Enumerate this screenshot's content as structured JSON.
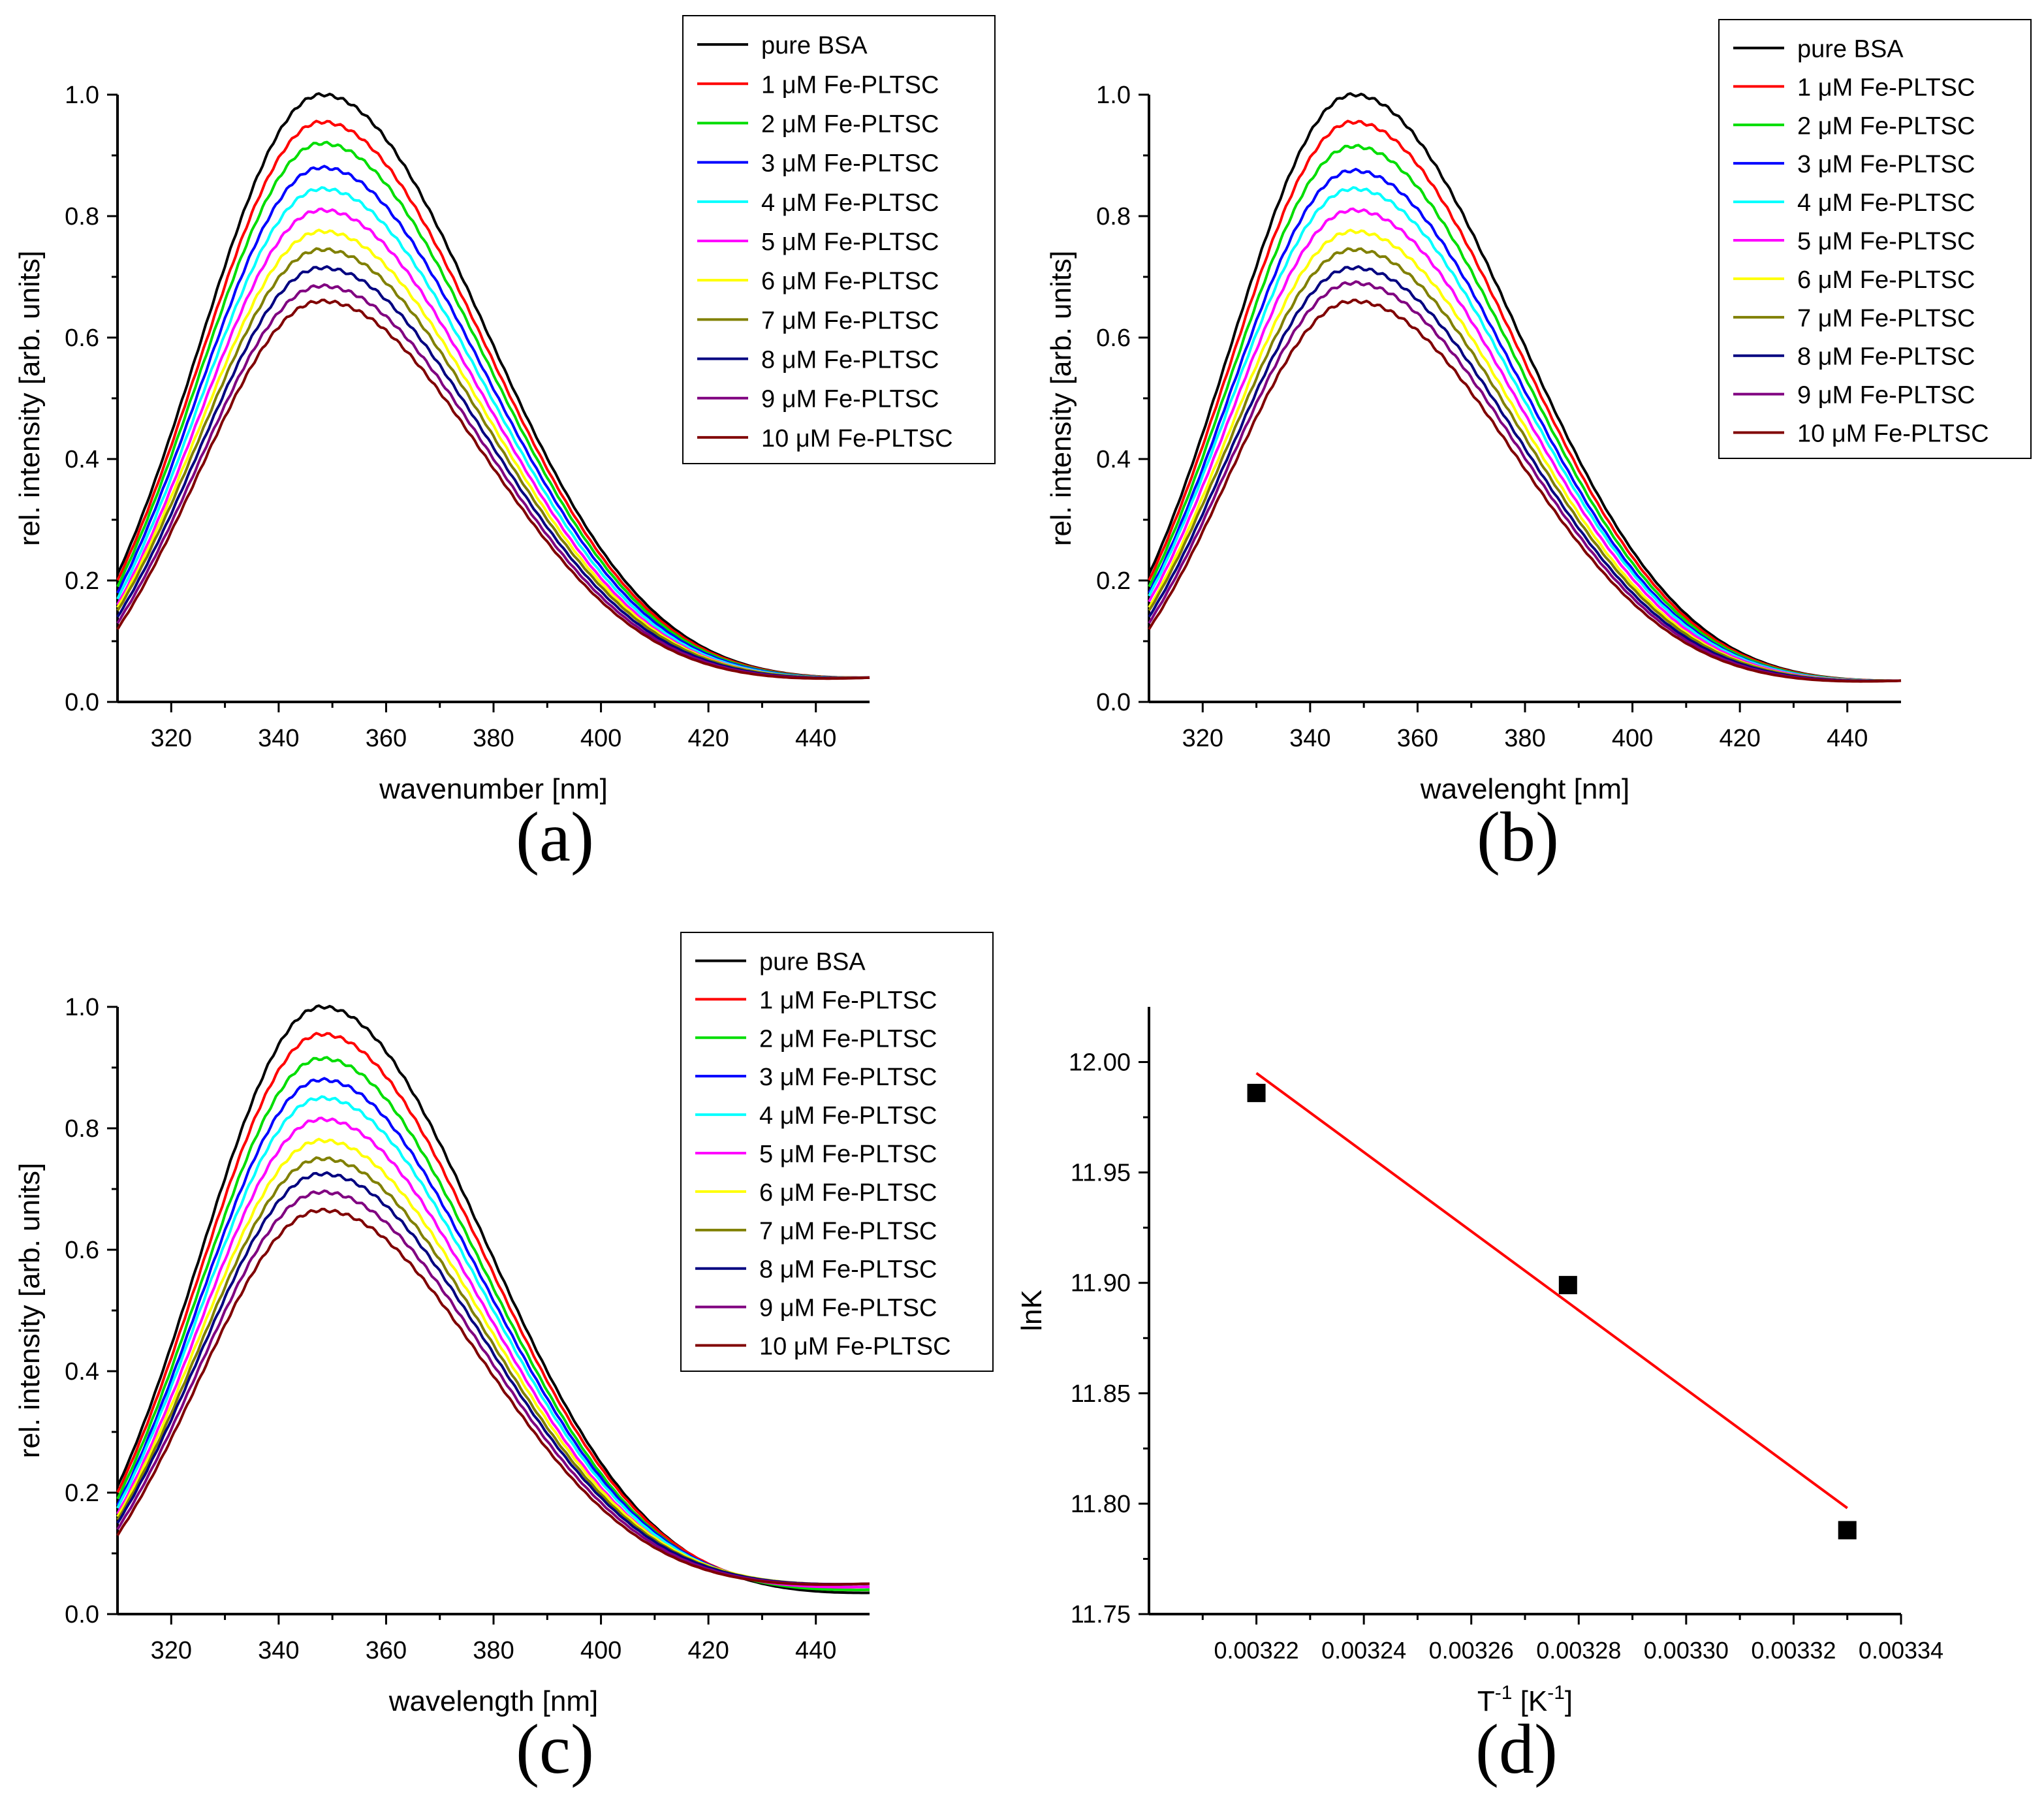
{
  "colors": {
    "series": [
      "#000000",
      "#ff0000",
      "#00dd00",
      "#0000ff",
      "#00ffff",
      "#ff00ff",
      "#ffff00",
      "#808000",
      "#000080",
      "#800080",
      "#800000"
    ],
    "fit_line": "#ff0000",
    "points": "#000000"
  },
  "chart_data": [
    {
      "panel": "(a)",
      "type": "line",
      "xlabel": "wavenumber [nm]",
      "ylabel": "rel. intensity [arb. units]",
      "xlim": [
        310,
        450
      ],
      "ylim": [
        0,
        1.0
      ],
      "xticks": [
        320,
        340,
        360,
        380,
        400,
        420,
        440
      ],
      "yticks": [
        "0.0",
        "0.2",
        "0.4",
        "0.6",
        "0.8",
        "1.0"
      ],
      "legend_position": "top-right",
      "series": [
        {
          "name": "pure BSA",
          "peak": 1.0,
          "start": 0.21,
          "end": 0.04
        },
        {
          "name": "1 μM Fe-PLTSC",
          "peak": 0.955,
          "start": 0.2,
          "end": 0.04
        },
        {
          "name": "2 μM Fe-PLTSC",
          "peak": 0.92,
          "start": 0.19,
          "end": 0.04
        },
        {
          "name": "3 μM Fe-PLTSC",
          "peak": 0.88,
          "start": 0.18,
          "end": 0.04
        },
        {
          "name": "4 μM Fe-PLTSC",
          "peak": 0.845,
          "start": 0.17,
          "end": 0.04
        },
        {
          "name": "5 μM Fe-PLTSC",
          "peak": 0.81,
          "start": 0.16,
          "end": 0.04
        },
        {
          "name": "6 μM Fe-PLTSC",
          "peak": 0.775,
          "start": 0.155,
          "end": 0.04
        },
        {
          "name": "7 μM Fe-PLTSC",
          "peak": 0.745,
          "start": 0.15,
          "end": 0.04
        },
        {
          "name": "8 μM Fe-PLTSC",
          "peak": 0.715,
          "start": 0.14,
          "end": 0.04
        },
        {
          "name": "9 μM Fe-PLTSC",
          "peak": 0.685,
          "start": 0.13,
          "end": 0.04
        },
        {
          "name": "10 μM Fe-PLTSC",
          "peak": 0.66,
          "start": 0.12,
          "end": 0.04
        }
      ]
    },
    {
      "panel": "(b)",
      "type": "line",
      "xlabel": "wavelenght [nm]",
      "ylabel": "rel. intensity [arb. units]",
      "xlim": [
        310,
        450
      ],
      "ylim": [
        0,
        1.0
      ],
      "xticks": [
        320,
        340,
        360,
        380,
        400,
        420,
        440
      ],
      "yticks": [
        "0.0",
        "0.2",
        "0.4",
        "0.6",
        "0.8",
        "1.0"
      ],
      "legend_position": "top-right",
      "series": [
        {
          "name": "pure BSA",
          "peak": 1.0,
          "start": 0.21,
          "end": 0.035
        },
        {
          "name": "1 μM Fe-PLTSC",
          "peak": 0.955,
          "start": 0.2,
          "end": 0.035
        },
        {
          "name": "2 μM Fe-PLTSC",
          "peak": 0.915,
          "start": 0.19,
          "end": 0.035
        },
        {
          "name": "3 μM Fe-PLTSC",
          "peak": 0.875,
          "start": 0.18,
          "end": 0.035
        },
        {
          "name": "4 μM Fe-PLTSC",
          "peak": 0.845,
          "start": 0.175,
          "end": 0.035
        },
        {
          "name": "5 μM Fe-PLTSC",
          "peak": 0.81,
          "start": 0.165,
          "end": 0.035
        },
        {
          "name": "6 μM Fe-PLTSC",
          "peak": 0.775,
          "start": 0.155,
          "end": 0.035
        },
        {
          "name": "7 μM Fe-PLTSC",
          "peak": 0.745,
          "start": 0.15,
          "end": 0.035
        },
        {
          "name": "8 μM Fe-PLTSC",
          "peak": 0.715,
          "start": 0.14,
          "end": 0.035
        },
        {
          "name": "9 μM Fe-PLTSC",
          "peak": 0.69,
          "start": 0.13,
          "end": 0.035
        },
        {
          "name": "10 μM Fe-PLTSC",
          "peak": 0.66,
          "start": 0.12,
          "end": 0.035
        }
      ]
    },
    {
      "panel": "(c)",
      "type": "line",
      "xlabel": "wavelength [nm]",
      "ylabel": "rel. intensity [arb. units]",
      "xlim": [
        310,
        450
      ],
      "ylim": [
        0,
        1.0
      ],
      "xticks": [
        320,
        340,
        360,
        380,
        400,
        420,
        440
      ],
      "yticks": [
        "0.0",
        "0.2",
        "0.4",
        "0.6",
        "0.8",
        "1.0"
      ],
      "legend_position": "top-right",
      "series": [
        {
          "name": "pure BSA",
          "peak": 1.0,
          "start": 0.21,
          "end": 0.035
        },
        {
          "name": "1 μM Fe-PLTSC",
          "peak": 0.955,
          "start": 0.2,
          "end": 0.04
        },
        {
          "name": "2 μM Fe-PLTSC",
          "peak": 0.915,
          "start": 0.19,
          "end": 0.04
        },
        {
          "name": "3 μM Fe-PLTSC",
          "peak": 0.88,
          "start": 0.18,
          "end": 0.045
        },
        {
          "name": "4 μM Fe-PLTSC",
          "peak": 0.85,
          "start": 0.175,
          "end": 0.045
        },
        {
          "name": "5 μM Fe-PLTSC",
          "peak": 0.815,
          "start": 0.165,
          "end": 0.045
        },
        {
          "name": "6 μM Fe-PLTSC",
          "peak": 0.78,
          "start": 0.16,
          "end": 0.05
        },
        {
          "name": "7 μM Fe-PLTSC",
          "peak": 0.75,
          "start": 0.155,
          "end": 0.05
        },
        {
          "name": "8 μM Fe-PLTSC",
          "peak": 0.725,
          "start": 0.15,
          "end": 0.05
        },
        {
          "name": "9 μM Fe-PLTSC",
          "peak": 0.695,
          "start": 0.14,
          "end": 0.05
        },
        {
          "name": "10 μM Fe-PLTSC",
          "peak": 0.665,
          "start": 0.13,
          "end": 0.05
        }
      ]
    },
    {
      "panel": "(d)",
      "type": "scatter",
      "xlabel": "T",
      "xlabel_sup": "-1",
      "xlabel_unit_open": "[K",
      "xlabel_unit_sup": "-1",
      "xlabel_unit_close": "]",
      "ylabel": "lnK",
      "xlim": [
        0.0032,
        0.00334
      ],
      "ylim": [
        11.75,
        12.025
      ],
      "xticks": [
        "0.00322",
        "0.00324",
        "0.00326",
        "0.00328",
        "0.00330",
        "0.00332",
        "0.00334"
      ],
      "yticks": [
        "11.75",
        "11.80",
        "11.85",
        "11.90",
        "11.95",
        "12.00"
      ],
      "points": [
        {
          "x": 0.00322,
          "y": 11.986
        },
        {
          "x": 0.003278,
          "y": 11.899
        },
        {
          "x": 0.00333,
          "y": 11.788
        }
      ],
      "fit": {
        "x": [
          0.00322,
          0.00333
        ],
        "y": [
          11.995,
          11.798
        ]
      }
    }
  ]
}
